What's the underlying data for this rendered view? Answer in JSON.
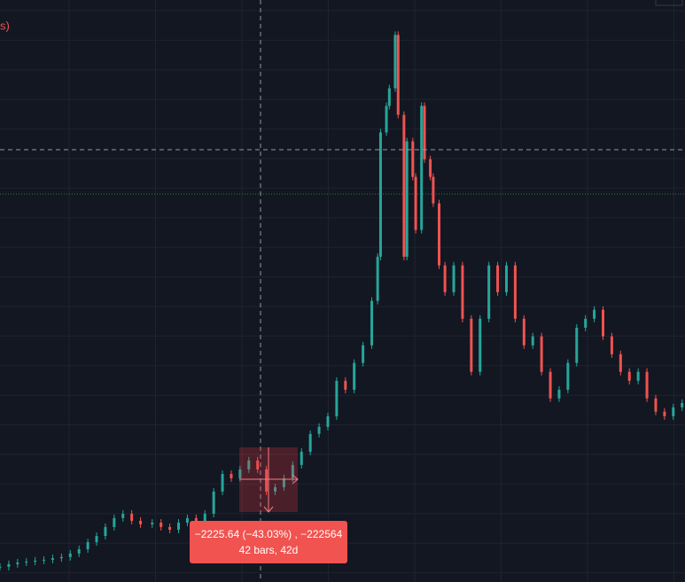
{
  "chart_data": {
    "type": "candlestick",
    "x": [
      0,
      3,
      6,
      9,
      12,
      15,
      18,
      21,
      24,
      27,
      30,
      33,
      36,
      39,
      42,
      45,
      48,
      52,
      55,
      58,
      61,
      64,
      67,
      70,
      73,
      76,
      79,
      82,
      85,
      88,
      91,
      94,
      97,
      100,
      103,
      106,
      109,
      112,
      115,
      118,
      121,
      124,
      127,
      129,
      130,
      132,
      133,
      135,
      136,
      138,
      139,
      141,
      142,
      144,
      145,
      147,
      148,
      150,
      152,
      155,
      158,
      161,
      164,
      167,
      170,
      173,
      176,
      179,
      182,
      185,
      188,
      191,
      194,
      197,
      200,
      203,
      206,
      209,
      212,
      215,
      218,
      221,
      224,
      227,
      230,
      233
    ],
    "values": [
      920,
      1020,
      1080,
      1110,
      1150,
      1180,
      1240,
      1280,
      1410,
      1570,
      1830,
      2060,
      2390,
      2720,
      2880,
      2620,
      2490,
      2550,
      2390,
      2290,
      2550,
      2720,
      2550,
      2880,
      3700,
      4350,
      4190,
      4520,
      4850,
      4520,
      3700,
      3860,
      4190,
      4680,
      5170,
      5830,
      6090,
      6480,
      7790,
      7460,
      8450,
      9100,
      10740,
      12370,
      16960,
      17940,
      18590,
      20560,
      17610,
      12370,
      16630,
      15320,
      13360,
      17940,
      15970,
      15320,
      14340,
      12050,
      11060,
      12050,
      10080,
      8120,
      10080,
      12050,
      11060,
      12050,
      10080,
      9100,
      9430,
      8120,
      7140,
      7460,
      8450,
      9750,
      10080,
      10410,
      9430,
      8770,
      8120,
      7790,
      8120,
      7140,
      6650,
      6480,
      6810,
      6970
    ],
    "xlim": [
      0,
      234
    ],
    "ylim": [
      360,
      21850
    ],
    "up_color": "#26a69a",
    "down_color": "#ef5350"
  },
  "legend_fragment": "s)",
  "measure_tooltip": {
    "change": "−2225.64 (−43.03%) , −222564",
    "span": "42 bars, 42d"
  }
}
